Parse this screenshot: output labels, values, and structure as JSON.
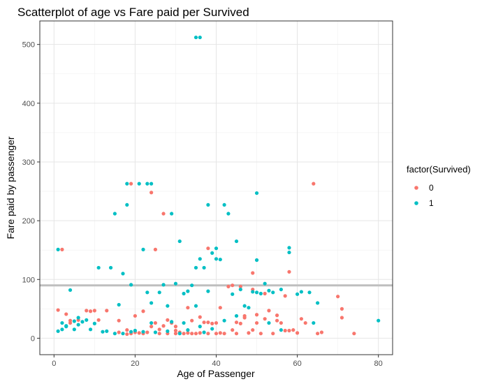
{
  "chart_data": {
    "type": "scatter",
    "title": "Scatterplot of age vs Fare paid per Survived",
    "xlabel": "Age of Passenger",
    "ylabel": "Fare paid by passenger",
    "xlim": [
      -3.5,
      83.5
    ],
    "ylim": [
      -28,
      540
    ],
    "x_ticks": [
      0,
      20,
      40,
      60,
      80
    ],
    "y_ticks": [
      0,
      100,
      200,
      300,
      400,
      500
    ],
    "grid": true,
    "reference_line": {
      "y": 90,
      "color": "#bfbfbf"
    },
    "legend": {
      "title": "factor(Survived)",
      "position": "right"
    },
    "series": [
      {
        "name": "0",
        "color": "#F8766D",
        "points": [
          [
            2,
            151
          ],
          [
            4,
            30
          ],
          [
            4,
            26
          ],
          [
            8,
            47
          ],
          [
            9,
            46
          ],
          [
            10,
            47
          ],
          [
            13,
            47
          ],
          [
            16,
            30
          ],
          [
            18,
            7
          ],
          [
            19,
            8
          ],
          [
            19,
            263
          ],
          [
            20,
            10
          ],
          [
            21,
            9
          ],
          [
            22,
            8
          ],
          [
            23,
            10
          ],
          [
            24,
            248
          ],
          [
            24,
            20
          ],
          [
            25,
            151
          ],
          [
            25,
            26
          ],
          [
            26,
            8
          ],
          [
            27,
            212
          ],
          [
            27,
            21
          ],
          [
            28,
            8
          ],
          [
            29,
            26
          ],
          [
            30,
            8
          ],
          [
            30,
            13
          ],
          [
            31,
            10
          ],
          [
            32,
            8
          ],
          [
            33,
            9
          ],
          [
            34,
            8
          ],
          [
            35,
            8
          ],
          [
            36,
            9
          ],
          [
            37,
            27
          ],
          [
            38,
            153
          ],
          [
            38,
            8
          ],
          [
            39,
            25
          ],
          [
            40,
            8
          ],
          [
            41,
            9
          ],
          [
            42,
            8
          ],
          [
            43,
            88
          ],
          [
            44,
            14
          ],
          [
            45,
            8
          ],
          [
            46,
            25
          ],
          [
            47,
            38
          ],
          [
            48,
            9
          ],
          [
            49,
            14
          ],
          [
            49,
            111
          ],
          [
            50,
            26
          ],
          [
            51,
            8
          ],
          [
            52,
            33
          ],
          [
            54,
            8
          ],
          [
            55,
            30
          ],
          [
            56,
            26
          ],
          [
            57,
            13
          ],
          [
            58,
            113
          ],
          [
            59,
            14
          ],
          [
            60,
            9
          ],
          [
            61,
            33
          ],
          [
            62,
            26
          ],
          [
            64,
            263
          ],
          [
            65,
            8
          ],
          [
            70,
            71
          ],
          [
            71,
            35
          ],
          [
            71,
            50
          ],
          [
            74,
            8
          ],
          [
            66,
            10
          ],
          [
            58,
            13
          ],
          [
            40,
            26
          ],
          [
            28,
            31
          ],
          [
            18,
            14
          ],
          [
            16,
            10
          ],
          [
            11,
            31
          ],
          [
            1,
            48
          ],
          [
            3,
            41
          ],
          [
            6,
            31
          ],
          [
            44,
            90
          ],
          [
            46,
            88
          ],
          [
            49,
            83
          ],
          [
            52,
            76
          ],
          [
            57,
            72
          ],
          [
            36,
            36
          ],
          [
            38,
            27
          ],
          [
            33,
            52
          ],
          [
            41,
            52
          ],
          [
            45,
            27
          ],
          [
            47,
            35
          ],
          [
            50,
            40
          ],
          [
            53,
            47
          ],
          [
            55,
            39
          ],
          [
            20,
            38
          ],
          [
            22,
            46
          ],
          [
            26,
            15
          ],
          [
            30,
            20
          ],
          [
            34,
            30
          ]
        ]
      },
      {
        "name": "1",
        "color": "#00BFC4",
        "points": [
          [
            1,
            151
          ],
          [
            2,
            26
          ],
          [
            3,
            20
          ],
          [
            4,
            82
          ],
          [
            5,
            29
          ],
          [
            6,
            35
          ],
          [
            8,
            31
          ],
          [
            11,
            120
          ],
          [
            14,
            120
          ],
          [
            15,
            212
          ],
          [
            16,
            57
          ],
          [
            17,
            110
          ],
          [
            18,
            227
          ],
          [
            18,
            263
          ],
          [
            19,
            91
          ],
          [
            21,
            263
          ],
          [
            22,
            151
          ],
          [
            23,
            78
          ],
          [
            23,
            263
          ],
          [
            24,
            263
          ],
          [
            24,
            60
          ],
          [
            26,
            78
          ],
          [
            27,
            91
          ],
          [
            28,
            55
          ],
          [
            29,
            212
          ],
          [
            30,
            93
          ],
          [
            31,
            165
          ],
          [
            32,
            76
          ],
          [
            33,
            80
          ],
          [
            34,
            90
          ],
          [
            35,
            512
          ],
          [
            36,
            512
          ],
          [
            35,
            120
          ],
          [
            36,
            135
          ],
          [
            37,
            120
          ],
          [
            38,
            227
          ],
          [
            38,
            80
          ],
          [
            39,
            145
          ],
          [
            40,
            153
          ],
          [
            40,
            135
          ],
          [
            41,
            134
          ],
          [
            42,
            227
          ],
          [
            43,
            212
          ],
          [
            44,
            75
          ],
          [
            45,
            165
          ],
          [
            46,
            83
          ],
          [
            48,
            52
          ],
          [
            49,
            79
          ],
          [
            50,
            247
          ],
          [
            50,
            133
          ],
          [
            51,
            76
          ],
          [
            52,
            93
          ],
          [
            53,
            81
          ],
          [
            54,
            78
          ],
          [
            56,
            83
          ],
          [
            58,
            154
          ],
          [
            58,
            146
          ],
          [
            60,
            75
          ],
          [
            61,
            79
          ],
          [
            63,
            78
          ],
          [
            64,
            26
          ],
          [
            65,
            60
          ],
          [
            80,
            30
          ],
          [
            1,
            12
          ],
          [
            2,
            15
          ],
          [
            3,
            21
          ],
          [
            5,
            15
          ],
          [
            6,
            23
          ],
          [
            7,
            28
          ],
          [
            9,
            15
          ],
          [
            12,
            11
          ],
          [
            15,
            8
          ],
          [
            17,
            8
          ],
          [
            19,
            11
          ],
          [
            20,
            13
          ],
          [
            22,
            11
          ],
          [
            25,
            10
          ],
          [
            28,
            12
          ],
          [
            31,
            8
          ],
          [
            33,
            14
          ],
          [
            36,
            20
          ],
          [
            39,
            16
          ],
          [
            42,
            30
          ],
          [
            45,
            38
          ],
          [
            47,
            55
          ],
          [
            50,
            78
          ],
          [
            53,
            26
          ],
          [
            56,
            14
          ],
          [
            10,
            25
          ],
          [
            13,
            12
          ],
          [
            24,
            26
          ],
          [
            29,
            28
          ],
          [
            32,
            26
          ],
          [
            35,
            55
          ],
          [
            37,
            10
          ]
        ]
      }
    ]
  }
}
